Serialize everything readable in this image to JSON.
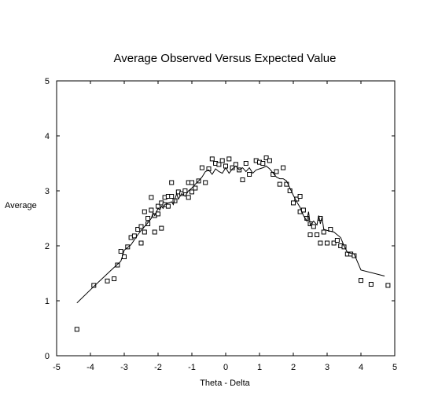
{
  "chart_data": {
    "type": "scatter",
    "title": "Average Observed Versus Expected Value",
    "xlabel": "Theta - Delta",
    "ylabel": "Average",
    "xlim": [
      -5,
      5
    ],
    "ylim": [
      0,
      5
    ],
    "xticks": [
      "-5",
      "-4",
      "-3",
      "-2",
      "-1",
      "0",
      "1",
      "2",
      "3",
      "4",
      "5"
    ],
    "yticks": [
      "0",
      "1",
      "2",
      "3",
      "4",
      "5"
    ],
    "grid": false,
    "series": [
      {
        "kind": "points",
        "marker": "square",
        "points": [
          [
            -4.4,
            0.48
          ],
          [
            -3.9,
            1.28
          ],
          [
            -3.5,
            1.36
          ],
          [
            -3.3,
            1.4
          ],
          [
            -3.2,
            1.65
          ],
          [
            -3.1,
            1.9
          ],
          [
            -3.0,
            1.8
          ],
          [
            -2.9,
            1.98
          ],
          [
            -2.8,
            2.15
          ],
          [
            -2.7,
            2.18
          ],
          [
            -2.6,
            2.3
          ],
          [
            -2.5,
            2.05
          ],
          [
            -2.5,
            2.35
          ],
          [
            -2.4,
            2.25
          ],
          [
            -2.4,
            2.62
          ],
          [
            -2.3,
            2.4
          ],
          [
            -2.3,
            2.5
          ],
          [
            -2.2,
            2.65
          ],
          [
            -2.2,
            2.88
          ],
          [
            -2.1,
            2.25
          ],
          [
            -2.1,
            2.55
          ],
          [
            -2.0,
            2.58
          ],
          [
            -2.0,
            2.72
          ],
          [
            -1.9,
            2.32
          ],
          [
            -1.9,
            2.78
          ],
          [
            -1.8,
            2.88
          ],
          [
            -1.8,
            2.75
          ],
          [
            -1.7,
            2.72
          ],
          [
            -1.7,
            2.9
          ],
          [
            -1.6,
            3.15
          ],
          [
            -1.6,
            2.9
          ],
          [
            -1.5,
            2.82
          ],
          [
            -1.4,
            2.98
          ],
          [
            -1.3,
            2.95
          ],
          [
            -1.2,
            3.0
          ],
          [
            -1.1,
            2.88
          ],
          [
            -1.1,
            3.15
          ],
          [
            -1.0,
            2.98
          ],
          [
            -1.0,
            3.15
          ],
          [
            -0.9,
            3.05
          ],
          [
            -0.8,
            3.18
          ],
          [
            -0.7,
            3.42
          ],
          [
            -0.6,
            3.15
          ],
          [
            -0.5,
            3.4
          ],
          [
            -0.4,
            3.58
          ],
          [
            -0.3,
            3.5
          ],
          [
            -0.2,
            3.48
          ],
          [
            -0.1,
            3.55
          ],
          [
            0.0,
            3.45
          ],
          [
            0.1,
            3.58
          ],
          [
            0.2,
            3.42
          ],
          [
            0.3,
            3.48
          ],
          [
            0.4,
            3.38
          ],
          [
            0.5,
            3.2
          ],
          [
            0.6,
            3.5
          ],
          [
            0.7,
            3.3
          ],
          [
            0.9,
            3.55
          ],
          [
            1.0,
            3.52
          ],
          [
            1.1,
            3.5
          ],
          [
            1.2,
            3.6
          ],
          [
            1.3,
            3.55
          ],
          [
            1.4,
            3.3
          ],
          [
            1.5,
            3.35
          ],
          [
            1.6,
            3.12
          ],
          [
            1.7,
            3.42
          ],
          [
            1.8,
            3.12
          ],
          [
            1.9,
            3.0
          ],
          [
            2.0,
            2.78
          ],
          [
            2.1,
            2.85
          ],
          [
            2.2,
            2.62
          ],
          [
            2.2,
            2.9
          ],
          [
            2.3,
            2.65
          ],
          [
            2.4,
            2.5
          ],
          [
            2.5,
            2.4
          ],
          [
            2.5,
            2.2
          ],
          [
            2.6,
            2.35
          ],
          [
            2.7,
            2.2
          ],
          [
            2.8,
            2.5
          ],
          [
            2.8,
            2.05
          ],
          [
            2.9,
            2.25
          ],
          [
            3.0,
            2.05
          ],
          [
            3.1,
            2.3
          ],
          [
            3.2,
            2.05
          ],
          [
            3.3,
            2.1
          ],
          [
            3.4,
            2.0
          ],
          [
            3.5,
            1.98
          ],
          [
            3.6,
            1.85
          ],
          [
            3.7,
            1.85
          ],
          [
            3.8,
            1.82
          ],
          [
            4.0,
            1.37
          ],
          [
            4.3,
            1.3
          ],
          [
            4.8,
            1.28
          ]
        ]
      },
      {
        "kind": "line",
        "points": [
          [
            -4.4,
            0.96
          ],
          [
            -3.9,
            1.26
          ],
          [
            -3.4,
            1.55
          ],
          [
            -3.1,
            1.72
          ],
          [
            -3.0,
            1.92
          ],
          [
            -2.8,
            2.02
          ],
          [
            -2.6,
            2.2
          ],
          [
            -2.5,
            2.28
          ],
          [
            -2.4,
            2.35
          ],
          [
            -2.3,
            2.42
          ],
          [
            -2.2,
            2.5
          ],
          [
            -2.15,
            2.6
          ],
          [
            -2.1,
            2.55
          ],
          [
            -2.0,
            2.68
          ],
          [
            -1.95,
            2.65
          ],
          [
            -1.9,
            2.72
          ],
          [
            -1.85,
            2.68
          ],
          [
            -1.8,
            2.75
          ],
          [
            -1.7,
            2.78
          ],
          [
            -1.6,
            2.8
          ],
          [
            -1.55,
            2.75
          ],
          [
            -1.5,
            2.85
          ],
          [
            -1.45,
            2.95
          ],
          [
            -1.4,
            2.85
          ],
          [
            -1.3,
            2.95
          ],
          [
            -1.2,
            2.9
          ],
          [
            -1.1,
            3.0
          ],
          [
            -1.0,
            3.05
          ],
          [
            -0.9,
            3.12
          ],
          [
            -0.8,
            3.18
          ],
          [
            -0.7,
            3.25
          ],
          [
            -0.6,
            3.35
          ],
          [
            -0.5,
            3.38
          ],
          [
            -0.4,
            3.3
          ],
          [
            -0.3,
            3.4
          ],
          [
            -0.2,
            3.35
          ],
          [
            -0.1,
            3.32
          ],
          [
            0.0,
            3.42
          ],
          [
            0.1,
            3.32
          ],
          [
            0.2,
            3.4
          ],
          [
            0.3,
            3.45
          ],
          [
            0.4,
            3.38
          ],
          [
            0.5,
            3.42
          ],
          [
            0.6,
            3.35
          ],
          [
            0.7,
            3.42
          ],
          [
            0.8,
            3.32
          ],
          [
            0.9,
            3.38
          ],
          [
            1.0,
            3.4
          ],
          [
            1.1,
            3.42
          ],
          [
            1.2,
            3.45
          ],
          [
            1.3,
            3.4
          ],
          [
            1.5,
            3.25
          ],
          [
            1.6,
            3.22
          ],
          [
            1.7,
            3.22
          ],
          [
            1.8,
            3.18
          ],
          [
            1.9,
            3.05
          ],
          [
            2.0,
            2.92
          ],
          [
            2.1,
            2.8
          ],
          [
            2.2,
            2.7
          ],
          [
            2.3,
            2.55
          ],
          [
            2.4,
            2.45
          ],
          [
            2.45,
            2.62
          ],
          [
            2.5,
            2.38
          ],
          [
            2.6,
            2.45
          ],
          [
            2.7,
            2.38
          ],
          [
            2.75,
            2.55
          ],
          [
            2.8,
            2.4
          ],
          [
            2.85,
            2.52
          ],
          [
            2.9,
            2.3
          ],
          [
            3.0,
            2.28
          ],
          [
            3.2,
            2.25
          ],
          [
            3.3,
            2.2
          ],
          [
            3.4,
            2.15
          ],
          [
            3.5,
            2.0
          ],
          [
            3.6,
            1.88
          ],
          [
            3.8,
            1.85
          ],
          [
            4.0,
            1.56
          ],
          [
            4.7,
            1.45
          ]
        ]
      }
    ]
  }
}
